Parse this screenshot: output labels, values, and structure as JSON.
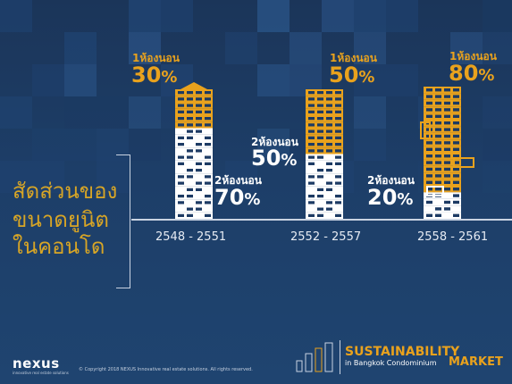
{
  "title_lines": [
    "สัดส่วนของ",
    "ขนาดยูนิต",
    "ในคอนโด"
  ],
  "colors": {
    "background": "#1c3a63",
    "one_bedroom": "#e9a21d",
    "two_bedroom": "#ffffff"
  },
  "chart_data": {
    "type": "bar",
    "title": "สัดส่วนของขนาดยูนิตในคอนโด",
    "categories": [
      "2548 - 2551",
      "2552 - 2557",
      "2558 - 2561"
    ],
    "series": [
      {
        "name": "1ห้องนอน",
        "values": [
          30,
          50,
          80
        ],
        "unit": "%"
      },
      {
        "name": "2ห้องนอน",
        "values": [
          70,
          50,
          20
        ],
        "unit": "%"
      }
    ],
    "ylim": [
      0,
      100
    ]
  },
  "footer": {
    "logo": "nexus",
    "logo_tagline": "innovative real estate solutions",
    "copyright": "© Copyright 2018 NEXUS Innovative real estate solutions. All rights reserved.",
    "brand_title": "SUSTAINABILITY",
    "brand_subtitle": "in Bangkok Condominium",
    "brand_market": "MARKET"
  }
}
